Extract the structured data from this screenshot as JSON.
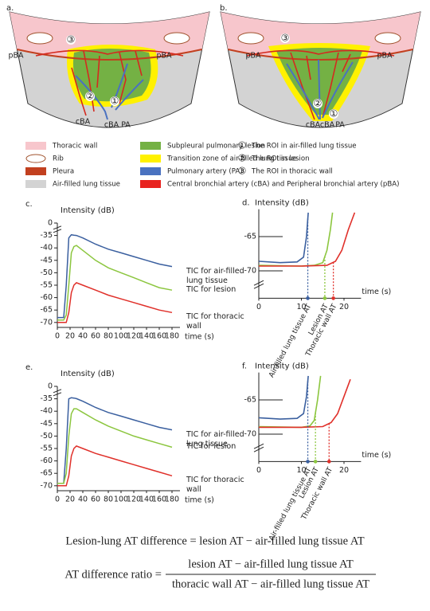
{
  "figure": {
    "panels": [
      {
        "label": "a.",
        "annotations": [
          "③",
          "pBA",
          "pBA",
          "②",
          "①",
          "cBA",
          "cBA",
          "PA"
        ]
      },
      {
        "label": "b.",
        "annotations": [
          "③",
          "pBA",
          "pBA",
          "②",
          "①",
          "cBA",
          "cBA",
          "PA"
        ]
      }
    ],
    "legend": {
      "items": [
        {
          "label": "Thoracic wall",
          "color": "#f7c6cc"
        },
        {
          "label": "Rib"
        },
        {
          "label": "Pleura",
          "color": "#c2401f"
        },
        {
          "label": "Air-filled lung tissue",
          "color": "#d3d3d3"
        },
        {
          "label": "Subpleural pulmonary lesion",
          "color": "#74b144"
        },
        {
          "label": "Transition zone of air-filled lung tissue",
          "color": "#fff100"
        },
        {
          "label": "Pulmonary artery (PA)",
          "color": "#4a72c0"
        },
        {
          "label": "Central bronchial artery (cBA)  and Peripheral bronchial artery (pBA)",
          "color": "#e8231f"
        }
      ],
      "roi": [
        {
          "symbol": "①",
          "label": "The ROI in air-filled lung tissue"
        },
        {
          "symbol": "②",
          "label": "The ROI in lesion"
        },
        {
          "symbol": "③",
          "label": "The ROI in thoracic wall"
        }
      ]
    }
  },
  "chart_data": [
    {
      "type": "line",
      "label": "c.",
      "ylabel": "Intensity (dB)",
      "xlabel": "time (s)",
      "axis_break": true,
      "x": [
        0,
        10,
        14,
        18,
        22,
        26,
        30,
        40,
        60,
        80,
        100,
        120,
        140,
        160,
        180
      ],
      "xlim": [
        0,
        180
      ],
      "xticks": [
        0,
        20,
        40,
        60,
        80,
        100,
        120,
        140,
        160,
        180
      ],
      "ylim": [
        -72,
        0
      ],
      "yticks": [
        0,
        -35,
        -40,
        -45,
        -50,
        -55,
        -60,
        -65,
        -70
      ],
      "series": [
        {
          "name": "TIC for air-filled lung tissue",
          "color": "#3a5f9f",
          "values": [
            -68,
            -68,
            -55,
            -36,
            -33,
            -34,
            -35,
            -36,
            -38.5,
            -40.5,
            -42,
            -43.5,
            -45,
            -46.5,
            -47.5
          ]
        },
        {
          "name": "TIC for lesion",
          "color": "#8cc63f",
          "values": [
            -69,
            -69,
            -67,
            -55,
            -42,
            -39.5,
            -39,
            -41,
            -45,
            -48,
            -50,
            -52,
            -54,
            -56,
            -57
          ]
        },
        {
          "name": "TIC for thoracic wall",
          "color": "#e0302a",
          "values": [
            -70,
            -70,
            -70,
            -66,
            -58,
            -55,
            -54,
            -55,
            -57,
            -59,
            -60.5,
            -62,
            -63.5,
            -65,
            -66
          ]
        }
      ]
    },
    {
      "type": "zoom",
      "label": "d.",
      "ylabel": "Intensity (dB)",
      "xlabel": "time (s)",
      "axis_break": true,
      "xlim": [
        0,
        24
      ],
      "xticks": [
        0,
        10,
        20
      ],
      "ylim": [
        -74,
        -61
      ],
      "yticks": [
        -65,
        -70
      ],
      "series": [
        {
          "color": "#3a5f9f",
          "x": [
            0,
            5,
            9,
            10.5,
            11.2,
            11.6
          ],
          "values": [
            -68.6,
            -68.8,
            -68.7,
            -68,
            -65,
            -61.5
          ]
        },
        {
          "color": "#8cc63f",
          "x": [
            0,
            10,
            13,
            15,
            16,
            16.8,
            17.3
          ],
          "values": [
            -69.2,
            -69.3,
            -69.2,
            -68.8,
            -67,
            -64,
            -61.5
          ]
        },
        {
          "color": "#e0302a",
          "x": [
            0,
            10,
            16,
            18,
            19.5,
            21,
            22.5
          ],
          "values": [
            -69.3,
            -69.3,
            -69.2,
            -68.6,
            -67,
            -64,
            -61.5
          ]
        }
      ],
      "markers": [
        {
          "name": "Air-filled lung tissue AT",
          "x": 11.5,
          "color": "#3a5f9f"
        },
        {
          "name": "Lesion AT",
          "x": 15.5,
          "color": "#8cc63f"
        },
        {
          "name": "Thoracic wall AT",
          "x": 17.5,
          "color": "#e0302a"
        }
      ]
    },
    {
      "type": "line",
      "label": "e.",
      "ylabel": "Intensity (dB)",
      "xlabel": "time (s)",
      "axis_break": true,
      "x": [
        0,
        10,
        14,
        18,
        22,
        26,
        30,
        40,
        60,
        80,
        100,
        120,
        140,
        160,
        180
      ],
      "xlim": [
        0,
        180
      ],
      "xticks": [
        0,
        20,
        40,
        60,
        80,
        100,
        120,
        140,
        160,
        180
      ],
      "ylim": [
        -72,
        0
      ],
      "yticks": [
        0,
        -35,
        -40,
        -45,
        -50,
        -55,
        -60,
        -65,
        -70
      ],
      "series": [
        {
          "name": "TIC for air-filled lung tissue",
          "color": "#3a5f9f",
          "values": [
            -69,
            -69,
            -55,
            -35,
            -32,
            -33,
            -34.5,
            -36,
            -38.5,
            -40.5,
            -42,
            -43.5,
            -45,
            -46.5,
            -47.5
          ]
        },
        {
          "name": "TIC for lesion",
          "color": "#8cc63f",
          "values": [
            -69,
            -69,
            -65,
            -50,
            -41,
            -39,
            -39,
            -40.5,
            -43.5,
            -46,
            -48,
            -50,
            -51.5,
            -53,
            -54.5
          ]
        },
        {
          "name": "TIC for thoracic wall",
          "color": "#e0302a",
          "values": [
            -70,
            -70,
            -70,
            -66,
            -58,
            -55,
            -54,
            -55,
            -57,
            -58.5,
            -60,
            -61.5,
            -63,
            -64.5,
            -66
          ]
        }
      ]
    },
    {
      "type": "zoom",
      "label": "f.",
      "ylabel": "Intensity (dB)",
      "xlabel": "time (s)",
      "axis_break": true,
      "xlim": [
        0,
        24
      ],
      "xticks": [
        0,
        10,
        20
      ],
      "ylim": [
        -74,
        -61
      ],
      "yticks": [
        -65,
        -70
      ],
      "series": [
        {
          "color": "#3a5f9f",
          "x": [
            0,
            5,
            9,
            10.5,
            11.2,
            11.6
          ],
          "values": [
            -67.6,
            -67.8,
            -67.7,
            -67,
            -64.5,
            -61.5
          ]
        },
        {
          "color": "#8cc63f",
          "x": [
            0,
            10,
            12,
            13,
            13.8,
            14.5
          ],
          "values": [
            -68.9,
            -69,
            -68.8,
            -68,
            -65,
            -61.5
          ]
        },
        {
          "color": "#e0302a",
          "x": [
            0,
            10,
            15,
            17,
            18.5,
            20,
            21.5
          ],
          "values": [
            -69,
            -69,
            -68.9,
            -68.3,
            -67,
            -64.5,
            -62
          ]
        }
      ],
      "markers": [
        {
          "name": "Air-filled lung tissue AT",
          "x": 11.5,
          "color": "#3a5f9f"
        },
        {
          "name": "Lesion AT",
          "x": 13.3,
          "color": "#8cc63f"
        },
        {
          "name": "Thoracic wall AT",
          "x": 16.5,
          "color": "#e0302a"
        }
      ]
    }
  ],
  "equations": {
    "difference": "Lesion-lung AT difference = lesion AT − air-filled lung tissue AT",
    "ratio_lhs": "AT difference ratio =",
    "ratio_numerator": "lesion AT − air-filled lung tissue AT",
    "ratio_denominator": "thoracic wall AT − air-filled lung tissue AT"
  }
}
